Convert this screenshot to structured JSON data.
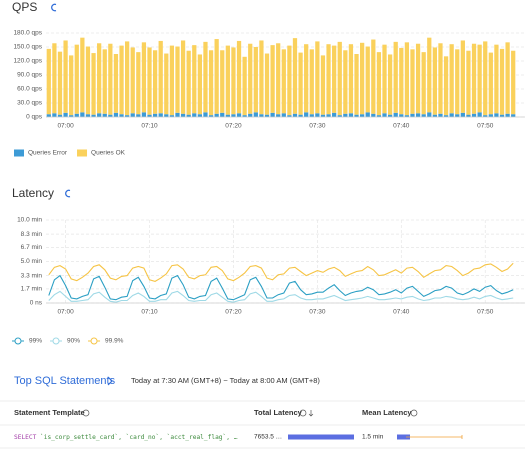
{
  "chart_data": [
    {
      "type": "bar",
      "title": "QPS",
      "stacked": true,
      "grid": true,
      "categories": [
        null,
        null,
        null,
        "07:00",
        null,
        null,
        null,
        null,
        null,
        null,
        null,
        null,
        null,
        null,
        null,
        null,
        null,
        null,
        "07:10",
        null,
        null,
        null,
        null,
        null,
        null,
        null,
        null,
        null,
        null,
        null,
        null,
        null,
        null,
        "07:20",
        null,
        null,
        null,
        null,
        null,
        null,
        null,
        null,
        null,
        null,
        null,
        null,
        null,
        null,
        "07:30",
        null,
        null,
        null,
        null,
        null,
        null,
        null,
        null,
        null,
        null,
        null,
        null,
        null,
        null,
        "07:40",
        null,
        null,
        null,
        null,
        null,
        null,
        null,
        null,
        null,
        null,
        null,
        null,
        null,
        null,
        "07:50",
        null,
        null,
        null,
        null,
        null
      ],
      "series": [
        {
          "name": "Queries Error",
          "color": "#3d9bd6",
          "values": [
            6,
            8,
            5,
            9,
            4,
            7,
            10,
            6,
            5,
            8,
            7,
            5,
            9,
            6,
            4,
            8,
            6,
            10,
            5,
            7,
            8,
            6,
            4,
            9,
            7,
            5,
            8,
            6,
            10,
            4,
            7,
            9,
            5,
            6,
            8,
            4,
            7,
            10,
            6,
            5,
            9,
            6,
            8,
            4,
            7,
            5,
            10,
            6,
            8,
            5,
            6,
            9,
            4,
            7,
            8,
            5,
            6,
            10,
            7,
            4,
            8,
            5,
            9,
            6,
            4,
            7,
            8,
            6,
            10,
            5,
            7,
            4,
            8,
            6,
            9,
            5,
            7,
            10,
            4,
            6,
            8,
            5,
            7,
            6
          ]
        },
        {
          "name": "Queries OK",
          "color": "#fad15c",
          "values": [
            140,
            150,
            135,
            155,
            128,
            148,
            160,
            145,
            132,
            150,
            138,
            152,
            126,
            147,
            158,
            141,
            133,
            150,
            144,
            136,
            155,
            130,
            149,
            142,
            157,
            137,
            146,
            128,
            151,
            139,
            160,
            134,
            148,
            143,
            155,
            125,
            150,
            140,
            158,
            131,
            145,
            152,
            137,
            149,
            162,
            133,
            146,
            139,
            154,
            127,
            150,
            144,
            157,
            136,
            148,
            130,
            153,
            141,
            159,
            135,
            147,
            129,
            152,
            142,
            156,
            138,
            149,
            133,
            160,
            144,
            151,
            126,
            148,
            139,
            155,
            137,
            150,
            145,
            158,
            132,
            147,
            141,
            153,
            136
          ]
        }
      ],
      "ylim": [
        0,
        180
      ],
      "yticks": [
        {
          "value": 0,
          "label": "0 qps"
        },
        {
          "value": 30,
          "label": "30.0 qps"
        },
        {
          "value": 60,
          "label": "60.0 qps"
        },
        {
          "value": 90,
          "label": "90.0 qps"
        },
        {
          "value": 120,
          "label": "120.0 qps"
        },
        {
          "value": 150,
          "label": "150.0 qps"
        },
        {
          "value": 180,
          "label": "180.0 qps"
        }
      ]
    },
    {
      "type": "line",
      "title": "Latency",
      "grid": true,
      "xgrid": true,
      "categories": [
        null,
        null,
        null,
        "07:00",
        null,
        null,
        null,
        null,
        null,
        null,
        null,
        null,
        null,
        null,
        null,
        null,
        null,
        null,
        "07:10",
        null,
        null,
        null,
        null,
        null,
        null,
        null,
        null,
        null,
        null,
        null,
        null,
        null,
        null,
        "07:20",
        null,
        null,
        null,
        null,
        null,
        null,
        null,
        null,
        null,
        null,
        null,
        null,
        null,
        null,
        "07:30",
        null,
        null,
        null,
        null,
        null,
        null,
        null,
        null,
        null,
        null,
        null,
        null,
        null,
        null,
        "07:40",
        null,
        null,
        null,
        null,
        null,
        null,
        null,
        null,
        null,
        null,
        null,
        null,
        null,
        null,
        "07:50",
        null,
        null,
        null,
        null,
        null
      ],
      "series": [
        {
          "name": "99%",
          "color": "#2b9fc4",
          "values": [
            0.9,
            2.8,
            3.3,
            2.1,
            0.6,
            0.5,
            0.8,
            1.0,
            2.9,
            3.2,
            1.9,
            0.5,
            0.4,
            0.7,
            0.8,
            2.7,
            3.1,
            2.0,
            0.6,
            0.5,
            0.9,
            1.1,
            3.0,
            3.3,
            2.2,
            0.7,
            0.5,
            0.8,
            0.9,
            2.6,
            3.0,
            1.8,
            0.5,
            0.4,
            0.7,
            1.0,
            2.8,
            3.1,
            2.0,
            0.6,
            0.6,
            1.0,
            1.2,
            2.4,
            2.6,
            1.6,
            1.0,
            1.1,
            1.3,
            1.3,
            1.8,
            2.2,
            1.5,
            0.9,
            1.2,
            1.4,
            1.5,
            1.9,
            1.6,
            1.0,
            1.1,
            1.3,
            1.6,
            1.2,
            1.8,
            2.0,
            1.4,
            0.8,
            1.1,
            1.5,
            1.6,
            2.0,
            1.8,
            1.2,
            1.0,
            1.3,
            1.7,
            1.4,
            1.9,
            2.1,
            1.5,
            1.1,
            1.3,
            1.6
          ]
        },
        {
          "name": "90%",
          "color": "#9fd9e6",
          "values": [
            0.3,
            1.0,
            1.4,
            0.8,
            0.2,
            0.2,
            0.3,
            0.4,
            1.1,
            1.3,
            0.7,
            0.2,
            0.1,
            0.3,
            0.3,
            0.9,
            1.2,
            0.8,
            0.2,
            0.2,
            0.4,
            0.4,
            1.2,
            1.4,
            0.9,
            0.3,
            0.2,
            0.3,
            0.3,
            1.0,
            1.2,
            0.7,
            0.2,
            0.1,
            0.3,
            0.4,
            1.1,
            1.3,
            0.8,
            0.2,
            0.2,
            0.4,
            0.5,
            0.9,
            1.0,
            0.6,
            0.4,
            0.4,
            0.5,
            0.5,
            0.7,
            0.9,
            0.6,
            0.3,
            0.4,
            0.5,
            0.6,
            0.8,
            0.6,
            0.4,
            0.4,
            0.5,
            0.6,
            0.5,
            0.7,
            0.8,
            0.5,
            0.3,
            0.4,
            0.6,
            0.6,
            0.8,
            0.7,
            0.5,
            0.4,
            0.5,
            0.7,
            0.5,
            0.8,
            0.9,
            0.6,
            0.4,
            0.5,
            0.6
          ]
        },
        {
          "name": "99.9%",
          "color": "#f6c445",
          "values": [
            3.4,
            4.3,
            4.5,
            4.1,
            2.9,
            2.7,
            3.1,
            3.6,
            4.4,
            4.6,
            4.0,
            3.0,
            2.8,
            3.2,
            3.3,
            4.2,
            4.4,
            4.2,
            2.8,
            2.6,
            3.0,
            3.5,
            4.5,
            4.6,
            4.1,
            3.1,
            2.9,
            3.3,
            3.4,
            4.3,
            4.4,
            3.9,
            2.9,
            2.7,
            3.1,
            3.6,
            4.4,
            4.5,
            4.2,
            3.0,
            2.8,
            3.4,
            3.5,
            4.2,
            4.3,
            3.8,
            3.3,
            3.6,
            3.9,
            3.7,
            4.1,
            4.3,
            3.9,
            3.2,
            3.5,
            3.8,
            3.9,
            4.4,
            4.0,
            3.3,
            3.4,
            3.7,
            4.0,
            3.6,
            4.2,
            4.3,
            3.8,
            3.1,
            3.5,
            3.9,
            4.0,
            4.5,
            4.4,
            3.9,
            3.3,
            3.6,
            4.1,
            4.2,
            4.6,
            4.7,
            4.3,
            3.8,
            4.1,
            4.8
          ]
        }
      ],
      "ylim": [
        0,
        10
      ],
      "yticks": [
        {
          "value": 0,
          "label": "0 ns"
        },
        {
          "value": 1.7,
          "label": "1.7 min"
        },
        {
          "value": 3.3,
          "label": "3.3 min"
        },
        {
          "value": 5,
          "label": "5.0 min"
        },
        {
          "value": 6.7,
          "label": "6.7 min"
        },
        {
          "value": 8.3,
          "label": "8.3 min"
        },
        {
          "value": 10,
          "label": "10.0 min"
        }
      ]
    }
  ],
  "top_sql": {
    "title": "Top SQL Statements",
    "range": "Today at 7:30 AM (GMT+8) ~ Today at 8:00 AM (GMT+8)",
    "columns": [
      "Statement Template",
      "Total Latency",
      "Mean Latency"
    ],
    "row": {
      "keyword": "SELECT",
      "statement": "`is_corp_settle_card`, `card_no`, `acct_real_flag`, …",
      "total_latency": "7653.5 …",
      "mean_latency": "1.5 min"
    }
  }
}
